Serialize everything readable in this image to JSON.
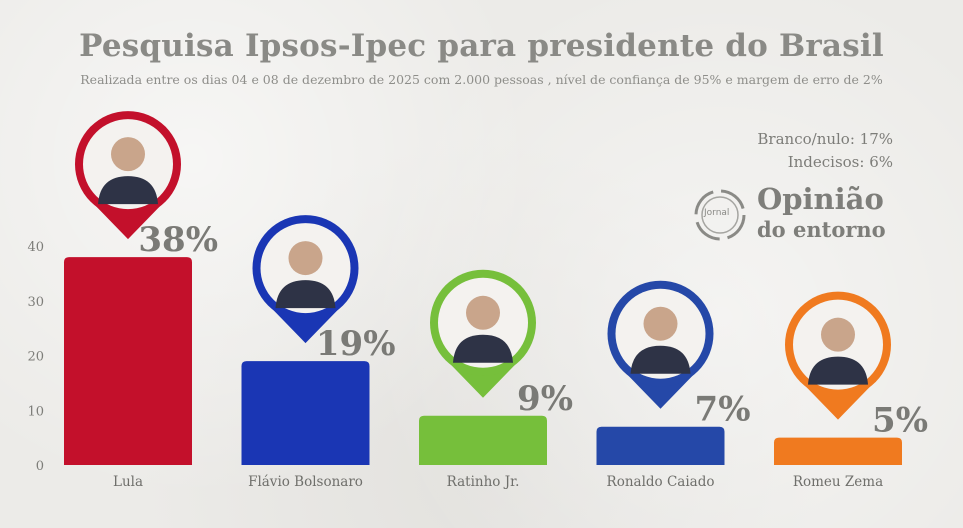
{
  "header": {
    "title": "Pesquisa Ipsos-Ipec para presidente do Brasil",
    "subtitle": "Realizada entre os dias 04 e 08 de dezembro de 2025 com 2.000 pessoas , nível de confiança de 95% e margem de erro de 2%"
  },
  "notes": {
    "branco": "Branco/nulo: 17%",
    "indecisos": "Indecisos: 6%"
  },
  "logo": {
    "ring_text": "Jornal",
    "title": "Opinião",
    "subtitle": "do entorno"
  },
  "chart_data": {
    "type": "bar",
    "categories": [
      "Lula",
      "Flávio Bolsonaro",
      "Ratinho Jr.",
      "Ronaldo Caiado",
      "Romeu Zema"
    ],
    "values": [
      38,
      19,
      9,
      7,
      5
    ],
    "value_labels": [
      "38%",
      "19%",
      "9%",
      "7%",
      "5%"
    ],
    "colors": [
      "#c3102b",
      "#1a36b4",
      "#76bf3b",
      "#2548a8",
      "#f07a1f"
    ],
    "yticks": [
      0,
      10,
      20,
      30,
      40
    ],
    "ylim": [
      0,
      44
    ],
    "grid": false,
    "legend": "none",
    "markers": "map-pin photo above each bar"
  }
}
